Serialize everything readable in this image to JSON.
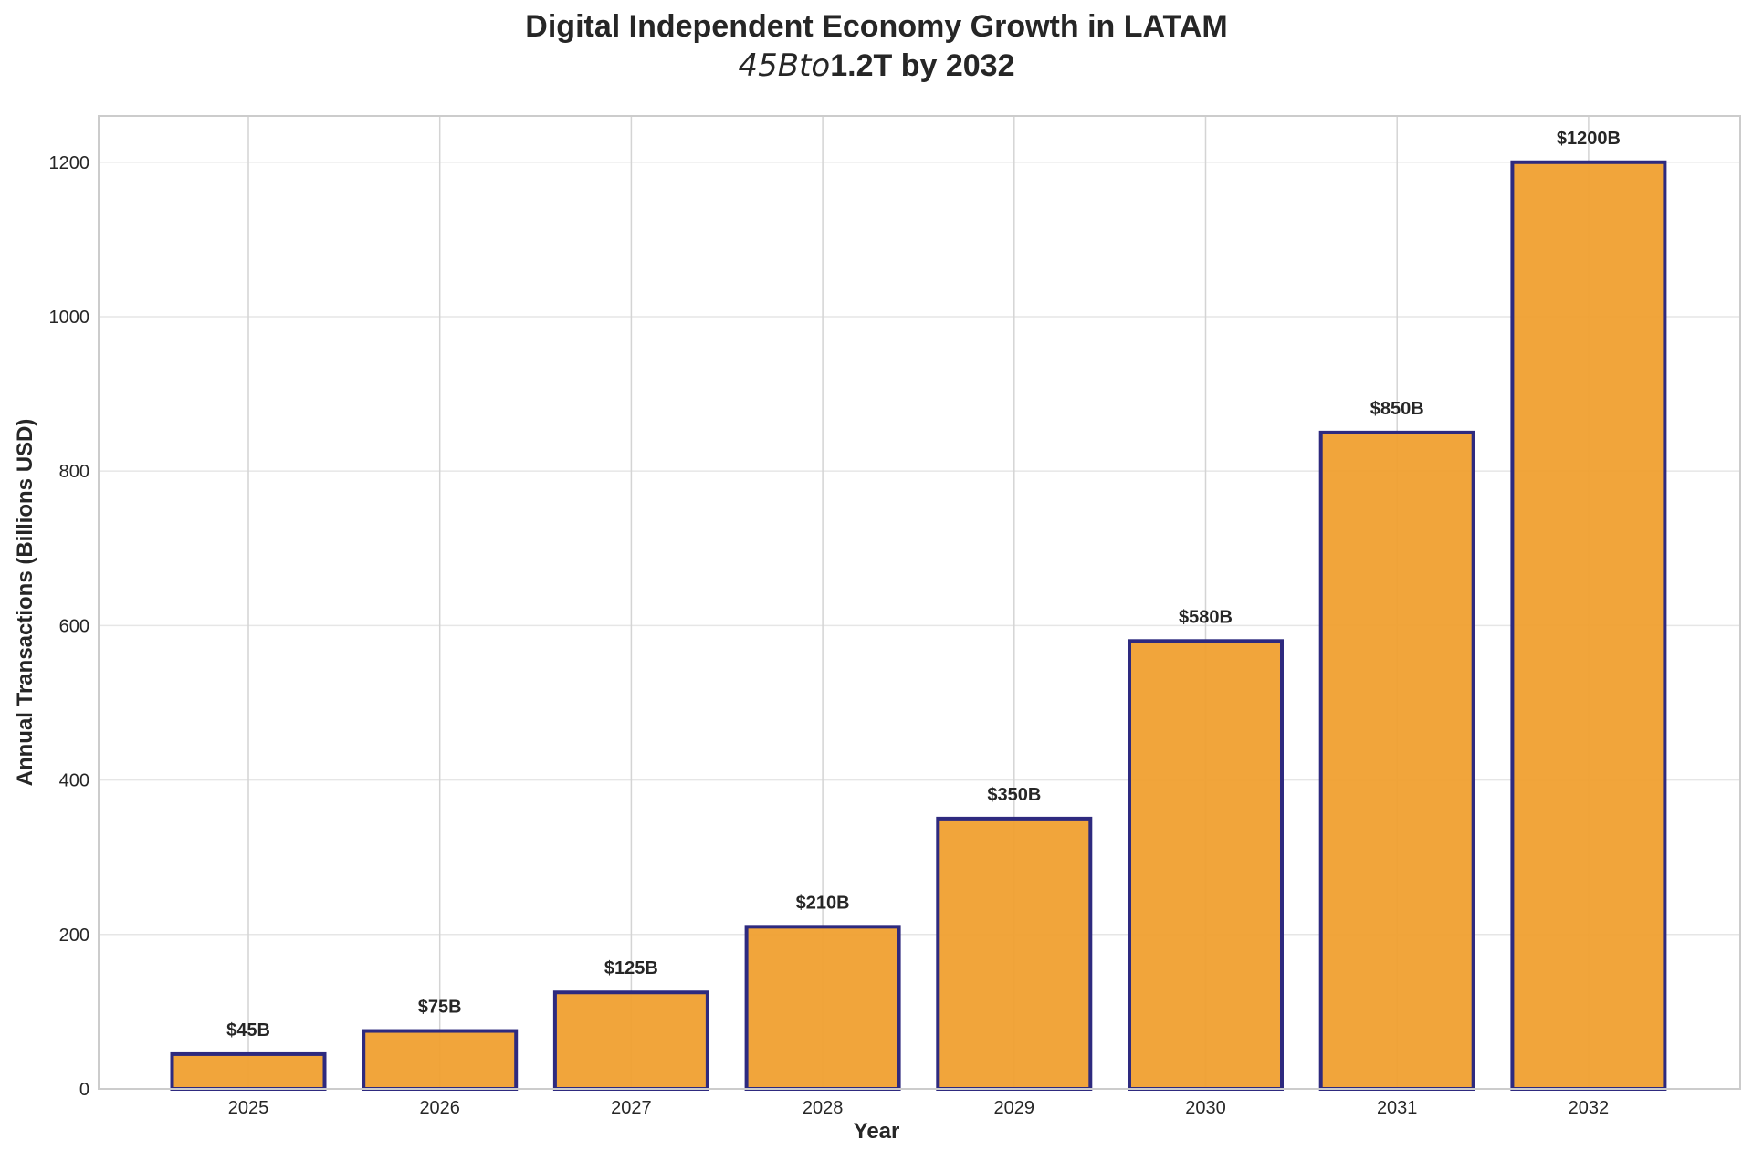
{
  "chart_data": {
    "type": "bar",
    "title": "Digital Independent Economy Growth in LATAM",
    "subtitle_math": "45Bto",
    "subtitle_rest": "1.2T by 2032",
    "xlabel": "Year",
    "ylabel": "Annual Transactions (Billions USD)",
    "categories": [
      "2025",
      "2026",
      "2027",
      "2028",
      "2029",
      "2030",
      "2031",
      "2032"
    ],
    "values": [
      45,
      75,
      125,
      210,
      350,
      580,
      850,
      1200
    ],
    "value_labels": [
      "$45B",
      "$75B",
      "$125B",
      "$210B",
      "$350B",
      "$580B",
      "$850B",
      "$1200B"
    ],
    "ylim": [
      0,
      1260
    ],
    "yticks": [
      0,
      200,
      400,
      600,
      800,
      1000,
      1200
    ],
    "grid": true,
    "colors": {
      "bar_fill": "#f0a030",
      "bar_edge": "#2e2a7f",
      "grid": "#e6e6e6",
      "frame": "#cccccc"
    }
  }
}
